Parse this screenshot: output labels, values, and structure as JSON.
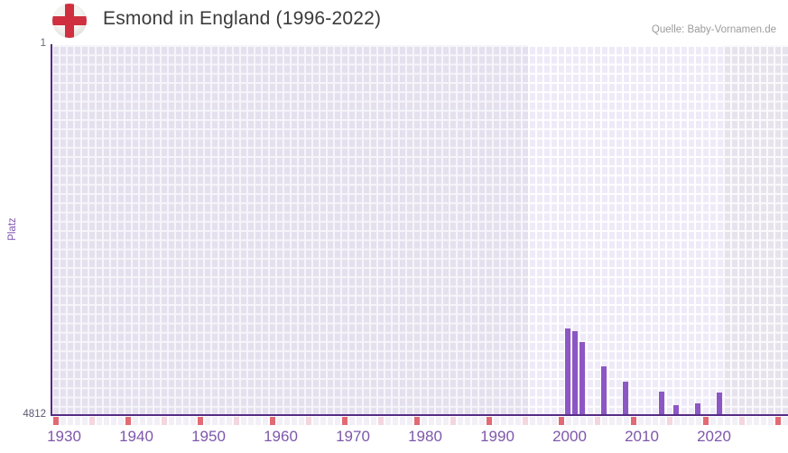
{
  "header": {
    "title": "Esmond in England (1996-2022)",
    "source": "Quelle: Baby-Vornamen.de",
    "flag_icon": "england-flag-icon"
  },
  "chart_data": {
    "type": "bar",
    "title": "Esmond in England (1996-2022)",
    "xlabel": "",
    "ylabel": "Platz",
    "y_axis": {
      "top_label": "1",
      "bottom_label": "4812",
      "min": 1,
      "max": 4812,
      "inverted": true
    },
    "x_axis": {
      "tick_labels": [
        "1930",
        "1940",
        "1950",
        "1960",
        "1970",
        "1980",
        "1990",
        "2000",
        "2010",
        "2020"
      ],
      "tick_years": [
        1930,
        1940,
        1950,
        1960,
        1970,
        1980,
        1990,
        2000,
        2010,
        2020
      ],
      "range_start": 1930,
      "range_end": 2031
    },
    "highlight_period": {
      "start": 1996,
      "end": 2022
    },
    "series": [
      {
        "name": "Platz",
        "points": [
          {
            "year": 2001,
            "rank": 3686
          },
          {
            "year": 2002,
            "rank": 3721
          },
          {
            "year": 2003,
            "rank": 3862
          },
          {
            "year": 2006,
            "rank": 4178
          },
          {
            "year": 2009,
            "rank": 4378
          },
          {
            "year": 2014,
            "rank": 4507
          },
          {
            "year": 2016,
            "rank": 4683
          },
          {
            "year": 2019,
            "rank": 4660
          },
          {
            "year": 2022,
            "rank": 4519
          }
        ]
      }
    ],
    "legend": null,
    "grid": true,
    "colors": {
      "bar": "#8c57c4",
      "axis": "#552b85",
      "tick_label": "#7d57ab",
      "plot_cell": "#e4e0ee",
      "plot_cell_highlight": "#efeaf8",
      "plot_cell_future": "#e6e3ed",
      "decade_marker": "#e26a74",
      "half_decade_marker": "#f4d6de",
      "strip_cell": "#f2eff7",
      "flag_cross": "#cf2f3e"
    }
  }
}
